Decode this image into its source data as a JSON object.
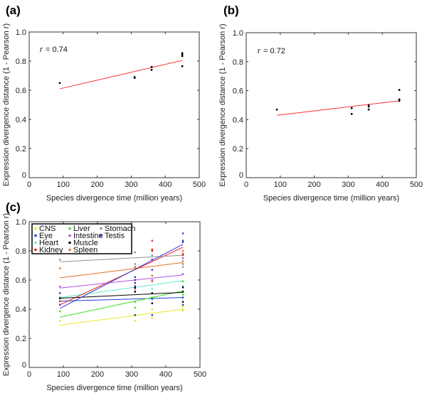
{
  "chart_data": [
    {
      "id": "a",
      "panel_label": "(a)",
      "type": "scatter",
      "xlabel": "Species divergence time (million years)",
      "ylabel": "Expression divergence distance (1 - Pearson r)",
      "xlim": [
        0,
        500
      ],
      "ylim": [
        0,
        1.0
      ],
      "xticks": [
        0,
        100,
        200,
        300,
        400,
        500
      ],
      "yticks": [
        0,
        0.2,
        0.4,
        0.6,
        0.8,
        1.0
      ],
      "xtick_labels": [
        "0",
        "100",
        "200",
        "300",
        "400",
        "500"
      ],
      "ytick_labels": [
        "0",
        "0.2",
        "0.4",
        "0.6",
        "0.8",
        "1.0"
      ],
      "annotation": {
        "symbol": "r",
        "text": "= 0.74"
      },
      "grid": false,
      "points": [
        {
          "x": 90,
          "y": 0.65
        },
        {
          "x": 310,
          "y": 0.69
        },
        {
          "x": 310,
          "y": 0.685
        },
        {
          "x": 360,
          "y": 0.74
        },
        {
          "x": 360,
          "y": 0.76
        },
        {
          "x": 450,
          "y": 0.765
        },
        {
          "x": 450,
          "y": 0.835
        },
        {
          "x": 450,
          "y": 0.845
        },
        {
          "x": 450,
          "y": 0.855
        }
      ],
      "point_color": "#000000",
      "fit_line": {
        "x": [
          90,
          450
        ],
        "y": [
          0.61,
          0.805
        ],
        "color": "#ff3030"
      }
    },
    {
      "id": "b",
      "panel_label": "(b)",
      "type": "scatter",
      "xlabel": "Species divergence time (million years)",
      "ylabel": "Expression divergence distance (1 - Pearson r)",
      "xlim": [
        0,
        500
      ],
      "ylim": [
        0,
        1.0
      ],
      "xticks": [
        0,
        100,
        200,
        300,
        400,
        500
      ],
      "yticks": [
        0,
        0.2,
        0.4,
        0.6,
        0.8,
        1.0
      ],
      "xtick_labels": [
        "0",
        "100",
        "200",
        "300",
        "400",
        "500"
      ],
      "ytick_labels": [
        "0",
        "0.2",
        "0.4",
        "0.6",
        "0.8",
        "1.0"
      ],
      "annotation": {
        "symbol": "r",
        "text": "= 0.72"
      },
      "grid": false,
      "points": [
        {
          "x": 90,
          "y": 0.47
        },
        {
          "x": 310,
          "y": 0.48
        },
        {
          "x": 310,
          "y": 0.44
        },
        {
          "x": 360,
          "y": 0.47
        },
        {
          "x": 360,
          "y": 0.49
        },
        {
          "x": 360,
          "y": 0.5
        },
        {
          "x": 450,
          "y": 0.605
        },
        {
          "x": 450,
          "y": 0.54
        },
        {
          "x": 450,
          "y": 0.53
        }
      ],
      "point_color": "#000000",
      "fit_line": {
        "x": [
          90,
          450
        ],
        "y": [
          0.43,
          0.53
        ],
        "color": "#ff3030"
      }
    },
    {
      "id": "c",
      "panel_label": "(c)",
      "type": "scatter",
      "xlabel": "Species divergence time (million years)",
      "ylabel": "Expression divergence distance (1 - Pearson r)",
      "xlim": [
        0,
        500
      ],
      "ylim": [
        0,
        1.0
      ],
      "xticks": [
        0,
        100,
        200,
        300,
        400,
        500
      ],
      "yticks": [
        0,
        0.2,
        0.4,
        0.6,
        0.8,
        1.0
      ],
      "xtick_labels": [
        "0",
        "100",
        "200",
        "300",
        "400",
        "500"
      ],
      "ytick_labels": [
        "0",
        "0.2",
        "0.4",
        "0.6",
        "0.8",
        "1.0"
      ],
      "legend_position": "top-left",
      "grid": false,
      "series": [
        {
          "name": "CNS",
          "color": "#e8e820",
          "points": [
            {
              "x": 90,
              "y": 0.32
            },
            {
              "x": 310,
              "y": 0.32
            },
            {
              "x": 310,
              "y": 0.355
            },
            {
              "x": 360,
              "y": 0.34
            },
            {
              "x": 360,
              "y": 0.4
            },
            {
              "x": 450,
              "y": 0.39
            },
            {
              "x": 450,
              "y": 0.4
            },
            {
              "x": 450,
              "y": 0.42
            }
          ],
          "fit": {
            "x": [
              90,
              450
            ],
            "y": [
              0.29,
              0.4
            ]
          }
        },
        {
          "name": "Eye",
          "color": "#2040e0",
          "points": [
            {
              "x": 90,
              "y": 0.51
            },
            {
              "x": 90,
              "y": 0.48
            },
            {
              "x": 310,
              "y": 0.36
            },
            {
              "x": 310,
              "y": 0.62
            },
            {
              "x": 360,
              "y": 0.36
            },
            {
              "x": 360,
              "y": 0.47
            },
            {
              "x": 450,
              "y": 0.43
            },
            {
              "x": 450,
              "y": 0.48
            }
          ],
          "fit": {
            "x": [
              90,
              450
            ],
            "y": [
              0.455,
              0.48
            ]
          }
        },
        {
          "name": "Heart",
          "color": "#60e8d0",
          "points": [
            {
              "x": 90,
              "y": 0.48
            },
            {
              "x": 310,
              "y": 0.52
            },
            {
              "x": 360,
              "y": 0.54
            },
            {
              "x": 450,
              "y": 0.56
            },
            {
              "x": 450,
              "y": 0.64
            }
          ],
          "fit": {
            "x": [
              90,
              450
            ],
            "y": [
              0.48,
              0.595
            ]
          }
        },
        {
          "name": "Kidney",
          "color": "#ee2020",
          "points": [
            {
              "x": 90,
              "y": 0.455
            },
            {
              "x": 310,
              "y": 0.54
            },
            {
              "x": 310,
              "y": 0.69
            },
            {
              "x": 360,
              "y": 0.8
            },
            {
              "x": 360,
              "y": 0.87
            },
            {
              "x": 360,
              "y": 0.81
            },
            {
              "x": 450,
              "y": 0.77
            },
            {
              "x": 450,
              "y": 0.78
            }
          ],
          "fit": {
            "x": [
              90,
              450
            ],
            "y": [
              0.43,
              0.825
            ]
          }
        },
        {
          "name": "Liver",
          "color": "#40dd20",
          "points": [
            {
              "x": 90,
              "y": 0.385
            },
            {
              "x": 310,
              "y": 0.45
            },
            {
              "x": 310,
              "y": 0.41
            },
            {
              "x": 360,
              "y": 0.48
            },
            {
              "x": 450,
              "y": 0.5
            },
            {
              "x": 450,
              "y": 0.59
            }
          ],
          "fit": {
            "x": [
              90,
              450
            ],
            "y": [
              0.345,
              0.525
            ]
          }
        },
        {
          "name": "Intestine",
          "color": "#b050e8",
          "points": [
            {
              "x": 90,
              "y": 0.555
            },
            {
              "x": 310,
              "y": 0.56
            },
            {
              "x": 360,
              "y": 0.6
            },
            {
              "x": 450,
              "y": 0.64
            },
            {
              "x": 450,
              "y": 0.75
            }
          ],
          "fit": {
            "x": [
              90,
              450
            ],
            "y": [
              0.545,
              0.635
            ]
          }
        },
        {
          "name": "Muscle",
          "color": "#000000",
          "points": [
            {
              "x": 90,
              "y": 0.475
            },
            {
              "x": 310,
              "y": 0.52
            },
            {
              "x": 310,
              "y": 0.55
            },
            {
              "x": 360,
              "y": 0.44
            },
            {
              "x": 360,
              "y": 0.51
            },
            {
              "x": 450,
              "y": 0.52
            },
            {
              "x": 450,
              "y": 0.55
            },
            {
              "x": 450,
              "y": 0.45
            }
          ],
          "fit": {
            "x": [
              90,
              450
            ],
            "y": [
              0.475,
              0.515
            ]
          }
        },
        {
          "name": "Spleen",
          "color": "#e07020",
          "points": [
            {
              "x": 90,
              "y": 0.68
            },
            {
              "x": 310,
              "y": 0.69
            },
            {
              "x": 360,
              "y": 0.63
            },
            {
              "x": 360,
              "y": 0.59
            },
            {
              "x": 450,
              "y": 0.71
            },
            {
              "x": 450,
              "y": 0.8
            }
          ],
          "fit": {
            "x": [
              90,
              450
            ],
            "y": [
              0.615,
              0.72
            ]
          }
        },
        {
          "name": "Stomach",
          "color": "#909090",
          "points": [
            {
              "x": 90,
              "y": 0.74
            },
            {
              "x": 310,
              "y": 0.71
            },
            {
              "x": 310,
              "y": 0.79
            },
            {
              "x": 360,
              "y": 0.77
            },
            {
              "x": 450,
              "y": 0.73
            },
            {
              "x": 450,
              "y": 0.69
            }
          ],
          "fit": {
            "x": [
              90,
              450
            ],
            "y": [
              0.725,
              0.77
            ]
          }
        },
        {
          "name": "Testis",
          "color": "#4030d8",
          "points": [
            {
              "x": 90,
              "y": 0.43
            },
            {
              "x": 310,
              "y": 0.58
            },
            {
              "x": 310,
              "y": 0.6
            },
            {
              "x": 360,
              "y": 0.67
            },
            {
              "x": 360,
              "y": 0.74
            },
            {
              "x": 450,
              "y": 0.92
            },
            {
              "x": 450,
              "y": 0.87
            },
            {
              "x": 450,
              "y": 0.86
            }
          ],
          "fit": {
            "x": [
              90,
              450
            ],
            "y": [
              0.405,
              0.845
            ]
          }
        }
      ],
      "legend_columns": [
        [
          "CNS",
          "Eye",
          "Heart",
          "Kidney"
        ],
        [
          "Liver",
          "Intestine",
          "Muscle",
          "Spleen"
        ],
        [
          "Stomach",
          "Testis"
        ]
      ]
    }
  ]
}
